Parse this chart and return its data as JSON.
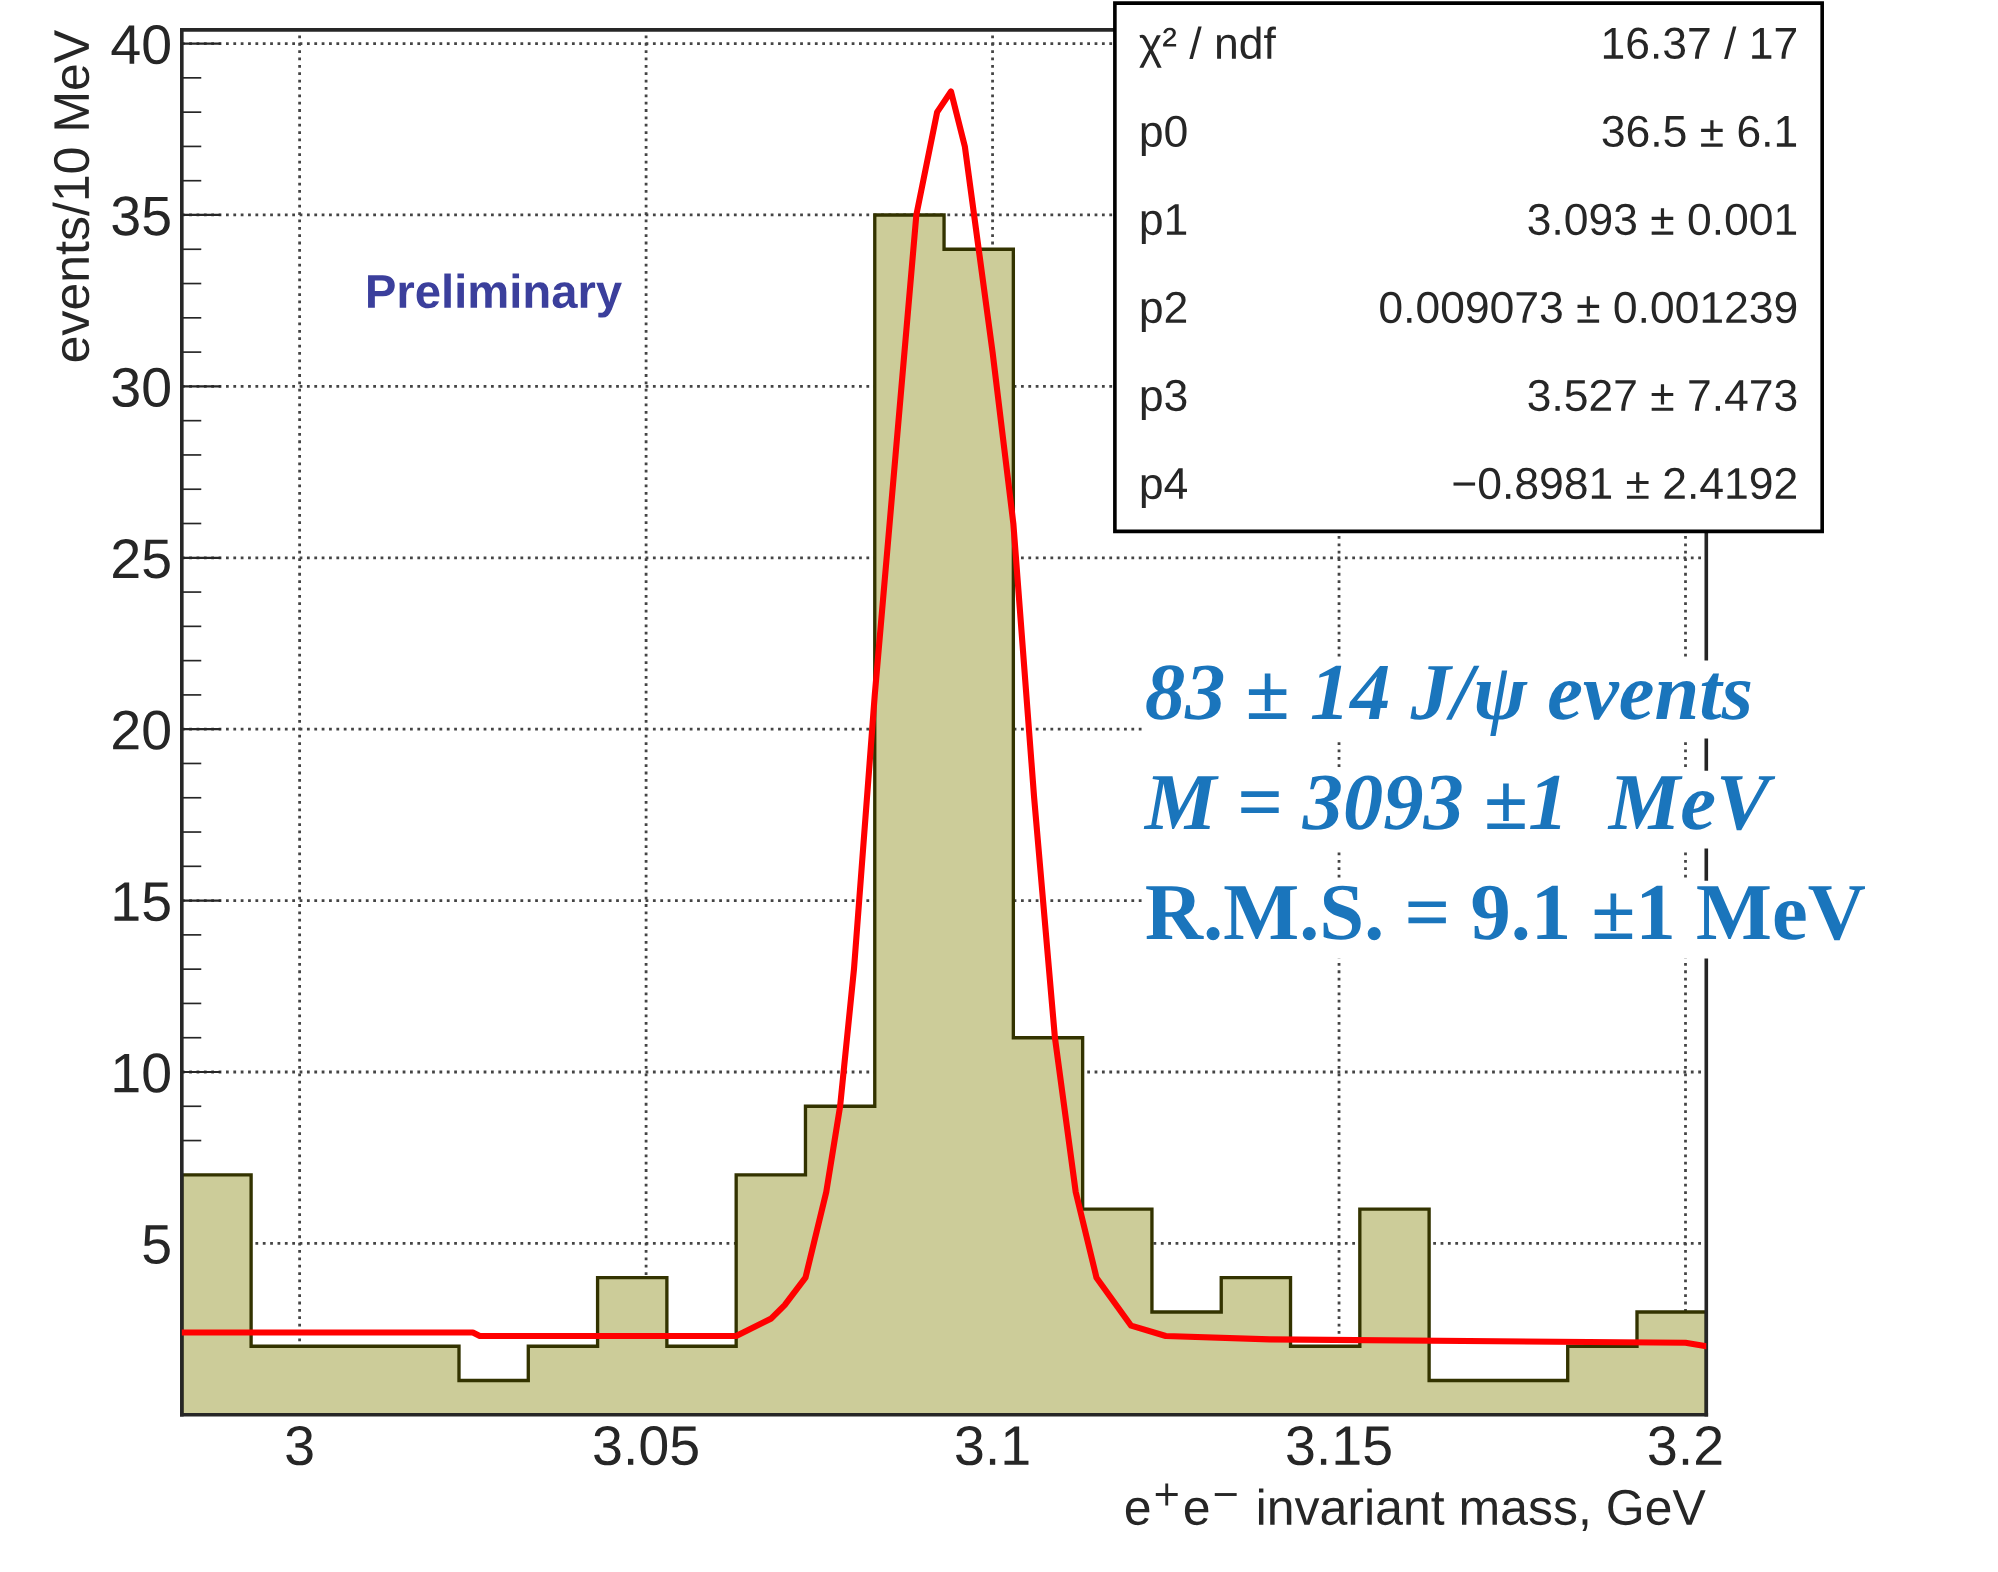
{
  "chart_data": {
    "type": "histogram",
    "xlabel": "e$^{+}$e$^{−}$ invariant mass, GeV",
    "ylabel": "events/10 MeV",
    "bins": [
      2.983,
      2.993,
      3.003,
      3.013,
      3.023,
      3.033,
      3.043,
      3.053,
      3.063,
      3.073,
      3.083,
      3.093,
      3.103,
      3.113,
      3.123,
      3.133,
      3.143,
      3.153,
      3.163,
      3.173,
      3.183,
      3.193,
      3.203
    ],
    "values": [
      7,
      2,
      2,
      2,
      1,
      2,
      4,
      2,
      7,
      9,
      35,
      34,
      11,
      6,
      3,
      4,
      2,
      6,
      1,
      1,
      2,
      3
    ],
    "color": "#cccc99",
    "series": [
      {
        "type": "line",
        "color": "#ff0000",
        "x": [
          2.983,
          3.025,
          3.026,
          3.063,
          3.068,
          3.07,
          3.073,
          3.076,
          3.078,
          3.08,
          3.083,
          3.086,
          3.089,
          3.092,
          3.094,
          3.096,
          3.098,
          3.1,
          3.103,
          3.106,
          3.109,
          3.112,
          3.115,
          3.12,
          3.125,
          3.14,
          3.2,
          3.203
        ],
        "values": [
          2.4,
          2.4,
          2.3,
          2.3,
          2.8,
          3.2,
          4.0,
          6.5,
          9,
          13,
          21,
          28,
          35,
          38,
          38.6,
          37,
          34,
          31,
          26,
          18,
          11,
          6.5,
          4,
          2.6,
          2.3,
          2.2,
          2.1,
          2.0
        ]
      }
    ],
    "xlim": [
      2.983,
      3.203
    ],
    "xticks": [
      3,
      3.05,
      3.1,
      3.15,
      3.2
    ],
    "ylim": [
      0,
      40.4
    ],
    "yticks": [
      5,
      10,
      15,
      20,
      25,
      30,
      35,
      40
    ],
    "grid": true,
    "annotations": [
      "χ² / ndf",
      "16.37 / 17",
      "p0",
      "36.5 ± 6.1",
      "p1",
      "3.093 ± 0.001",
      "p2",
      "0.009073 ± 0.001239",
      "p3",
      "3.527 ± 7.473",
      "p4",
      "−0.8981 ± 2.4192",
      "83 ± 14 J/ψ events",
      "M = 3093 ±1  MeV",
      "R.M.S. = 9.1 ±1 MeV",
      "Preliminary"
    ]
  }
}
